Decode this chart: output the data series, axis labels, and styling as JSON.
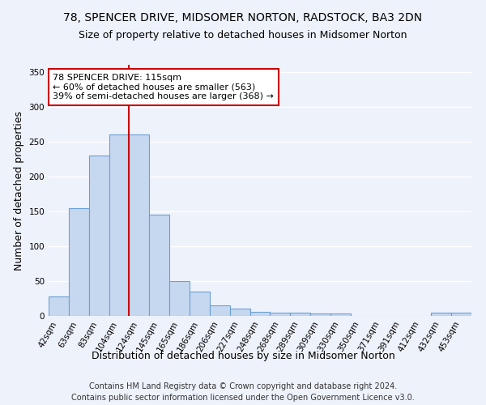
{
  "title": "78, SPENCER DRIVE, MIDSOMER NORTON, RADSTOCK, BA3 2DN",
  "subtitle": "Size of property relative to detached houses in Midsomer Norton",
  "xlabel": "Distribution of detached houses by size in Midsomer Norton",
  "ylabel": "Number of detached properties",
  "categories": [
    "42sqm",
    "63sqm",
    "83sqm",
    "104sqm",
    "124sqm",
    "145sqm",
    "165sqm",
    "186sqm",
    "206sqm",
    "227sqm",
    "248sqm",
    "268sqm",
    "289sqm",
    "309sqm",
    "330sqm",
    "350sqm",
    "371sqm",
    "391sqm",
    "412sqm",
    "432sqm",
    "453sqm"
  ],
  "values": [
    28,
    155,
    230,
    260,
    260,
    145,
    50,
    35,
    15,
    10,
    6,
    5,
    5,
    3,
    4,
    0,
    0,
    0,
    0,
    5,
    5
  ],
  "bar_color": "#c5d8f0",
  "bar_edge_color": "#6b9fd4",
  "vline_color": "#cc0000",
  "vline_bar_index": 4,
  "annotation_text": "78 SPENCER DRIVE: 115sqm\n← 60% of detached houses are smaller (563)\n39% of semi-detached houses are larger (368) →",
  "annotation_box_color": "#ffffff",
  "annotation_box_edge_color": "#cc0000",
  "ylim": [
    0,
    360
  ],
  "yticks": [
    0,
    50,
    100,
    150,
    200,
    250,
    300,
    350
  ],
  "footer1": "Contains HM Land Registry data © Crown copyright and database right 2024.",
  "footer2": "Contains public sector information licensed under the Open Government Licence v3.0.",
  "background_color": "#eef2fb",
  "grid_color": "#ffffff",
  "title_fontsize": 10,
  "subtitle_fontsize": 9,
  "axis_label_fontsize": 9,
  "tick_fontsize": 7.5,
  "footer_fontsize": 7,
  "annotation_fontsize": 8
}
